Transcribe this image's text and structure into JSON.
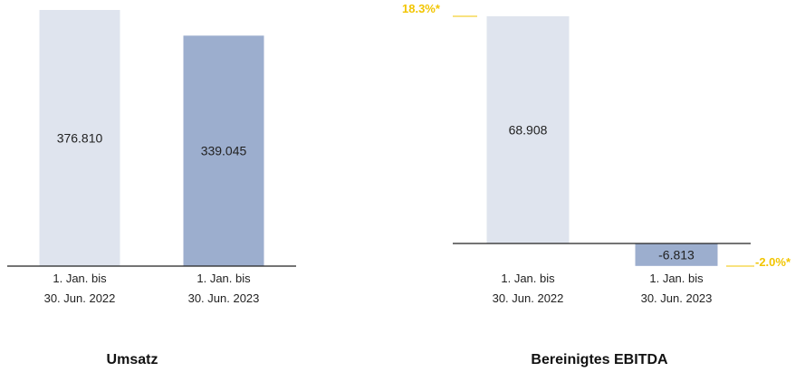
{
  "colors": {
    "bar_2022": "#dfe4ee",
    "bar_2023": "#9caece",
    "axis": "#222222",
    "annotation": "#f2c500"
  },
  "chart_data": [
    {
      "type": "bar",
      "title": "Umsatz",
      "categories": [
        "1. Jan. bis\n30. Jun. 2022",
        "1. Jan. bis\n30. Jun. 2023"
      ],
      "category_lines": [
        [
          "1. Jan. bis",
          "30. Jun. 2022"
        ],
        [
          "1. Jan. bis",
          "30. Jun. 2023"
        ]
      ],
      "values": [
        376810,
        339045
      ],
      "value_labels": [
        "376.810",
        "339.045"
      ],
      "xlabel": "",
      "ylabel": "",
      "ylim": [
        0,
        376810
      ],
      "grid": false,
      "annotations": []
    },
    {
      "type": "bar",
      "title": "Bereinigtes EBITDA",
      "categories": [
        "1. Jan. bis\n30. Jun. 2022",
        "1. Jan. bis\n30. Jun. 2023"
      ],
      "category_lines": [
        [
          "1. Jan. bis",
          "30. Jun. 2022"
        ],
        [
          "1. Jan. bis",
          "30. Jun. 2023"
        ]
      ],
      "values": [
        68908,
        -6813
      ],
      "value_labels": [
        "68.908",
        "-6.813"
      ],
      "xlabel": "",
      "ylabel": "",
      "ylim": [
        -6813,
        68908
      ],
      "grid": false,
      "annotations": [
        {
          "category": 0,
          "text": "18.3%*"
        },
        {
          "category": 1,
          "text": "-2.0%*"
        }
      ]
    }
  ]
}
